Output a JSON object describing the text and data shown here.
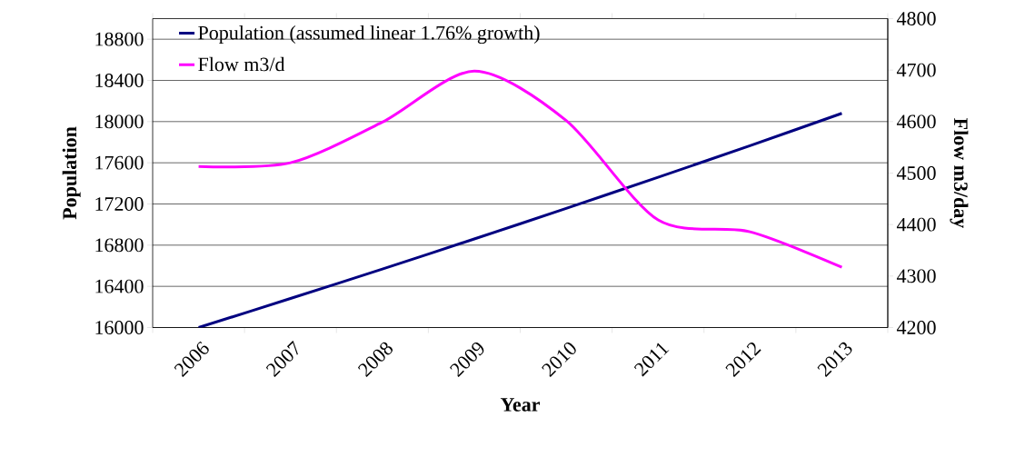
{
  "chart_data": {
    "type": "line",
    "xlabel": "Year",
    "ylabel": "Population",
    "y2label": "Flow m3/day",
    "categories": [
      "2006",
      "2007",
      "2008",
      "2009",
      "2010",
      "2011",
      "2012",
      "2013"
    ],
    "series": [
      {
        "name": "Population (assumed linear 1.76% growth)",
        "color": "#000080",
        "values": [
          16000,
          16282,
          16568,
          16860,
          17157,
          17459,
          17766,
          18080
        ]
      },
      {
        "name": "Flow m3/d",
        "color": "#ff00ff",
        "axis": "y2",
        "values": [
          4513,
          4520,
          4599,
          4698,
          4602,
          4409,
          4386,
          4317
        ]
      }
    ],
    "ylim": [
      16000,
      19000
    ],
    "yticks": [
      16000,
      16400,
      16800,
      17200,
      17600,
      18000,
      18400,
      18800
    ],
    "y2lim": [
      4200,
      4800
    ],
    "y2ticks": [
      4200,
      4300,
      4400,
      4500,
      4600,
      4700,
      4800
    ],
    "grid": "y",
    "legend": "top left",
    "marker": "none",
    "line_style": "solid"
  }
}
